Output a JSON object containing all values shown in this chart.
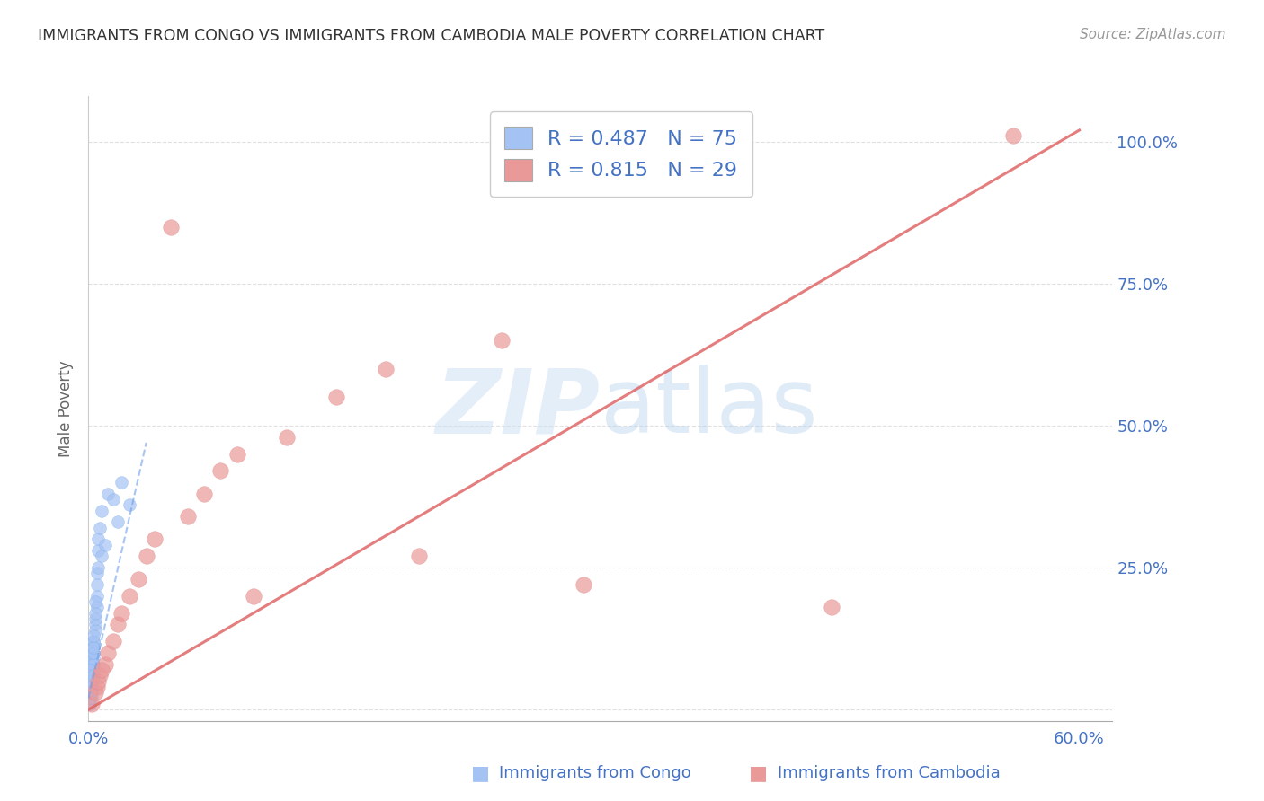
{
  "title": "IMMIGRANTS FROM CONGO VS IMMIGRANTS FROM CAMBODIA MALE POVERTY CORRELATION CHART",
  "source": "Source: ZipAtlas.com",
  "ylabel": "Male Poverty",
  "xlim": [
    0.0,
    0.62
  ],
  "ylim": [
    -0.02,
    1.08
  ],
  "xticks": [
    0.0,
    0.1,
    0.2,
    0.3,
    0.4,
    0.5,
    0.6
  ],
  "xticklabels": [
    "0.0%",
    "",
    "",
    "",
    "",
    "",
    "60.0%"
  ],
  "yticks": [
    0.0,
    0.25,
    0.5,
    0.75,
    1.0
  ],
  "yticklabels": [
    "",
    "25.0%",
    "50.0%",
    "75.0%",
    "100.0%"
  ],
  "congo_color": "#a4c2f4",
  "cambodia_color": "#ea9999",
  "congo_line_color": "#6d9eeb",
  "cambodia_line_color": "#e06666",
  "legend_R_congo": "0.487",
  "legend_N_congo": "75",
  "legend_R_cambodia": "0.815",
  "legend_N_cambodia": "29",
  "background_color": "#ffffff",
  "grid_color": "#e0e0e0",
  "axis_label_color": "#4472c4",
  "title_color": "#333333",
  "congo_x": [
    0.001,
    0.002,
    0.001,
    0.003,
    0.002,
    0.001,
    0.002,
    0.003,
    0.001,
    0.002,
    0.001,
    0.002,
    0.001,
    0.003,
    0.002,
    0.001,
    0.002,
    0.001,
    0.002,
    0.003,
    0.001,
    0.002,
    0.001,
    0.002,
    0.001,
    0.002,
    0.003,
    0.001,
    0.002,
    0.001,
    0.003,
    0.002,
    0.001,
    0.002,
    0.003,
    0.001,
    0.002,
    0.001,
    0.002,
    0.003,
    0.002,
    0.001,
    0.002,
    0.003,
    0.001,
    0.002,
    0.001,
    0.002,
    0.003,
    0.001,
    0.004,
    0.003,
    0.005,
    0.004,
    0.003,
    0.004,
    0.005,
    0.003,
    0.004,
    0.003,
    0.005,
    0.006,
    0.004,
    0.005,
    0.006,
    0.007,
    0.008,
    0.012,
    0.015,
    0.02,
    0.01,
    0.008,
    0.006,
    0.025,
    0.018
  ],
  "congo_y": [
    0.05,
    0.08,
    0.03,
    0.12,
    0.07,
    0.02,
    0.06,
    0.1,
    0.04,
    0.09,
    0.01,
    0.03,
    0.06,
    0.08,
    0.05,
    0.02,
    0.07,
    0.04,
    0.03,
    0.11,
    0.02,
    0.05,
    0.08,
    0.04,
    0.01,
    0.06,
    0.09,
    0.03,
    0.07,
    0.02,
    0.1,
    0.05,
    0.04,
    0.08,
    0.06,
    0.03,
    0.09,
    0.02,
    0.05,
    0.07,
    0.04,
    0.06,
    0.03,
    0.08,
    0.05,
    0.02,
    0.07,
    0.04,
    0.06,
    0.03,
    0.15,
    0.12,
    0.18,
    0.14,
    0.1,
    0.16,
    0.2,
    0.11,
    0.17,
    0.13,
    0.22,
    0.28,
    0.19,
    0.24,
    0.3,
    0.32,
    0.35,
    0.38,
    0.37,
    0.4,
    0.29,
    0.27,
    0.25,
    0.36,
    0.33
  ],
  "cambodia_x": [
    0.002,
    0.005,
    0.004,
    0.007,
    0.006,
    0.01,
    0.008,
    0.012,
    0.015,
    0.018,
    0.02,
    0.025,
    0.03,
    0.035,
    0.04,
    0.05,
    0.06,
    0.07,
    0.08,
    0.09,
    0.1,
    0.12,
    0.15,
    0.18,
    0.2,
    0.25,
    0.3,
    0.45,
    0.56
  ],
  "cambodia_y": [
    0.01,
    0.04,
    0.03,
    0.06,
    0.05,
    0.08,
    0.07,
    0.1,
    0.12,
    0.15,
    0.17,
    0.2,
    0.23,
    0.27,
    0.3,
    0.85,
    0.34,
    0.38,
    0.42,
    0.45,
    0.2,
    0.48,
    0.55,
    0.6,
    0.27,
    0.65,
    0.22,
    0.18,
    1.01
  ],
  "congo_trend_x": [
    0.0,
    0.035
  ],
  "congo_trend_y": [
    0.02,
    0.47
  ],
  "cambodia_trend_x": [
    0.0,
    0.6
  ],
  "cambodia_trend_y": [
    0.0,
    1.02
  ]
}
